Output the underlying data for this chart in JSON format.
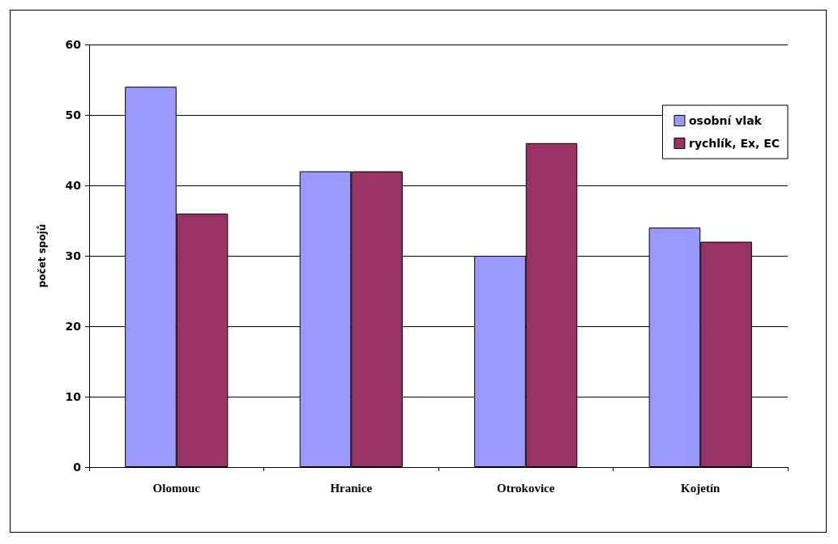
{
  "chart_data": {
    "type": "bar",
    "ylabel": "počet spojů",
    "categories": [
      "Olomouc",
      "Hranice",
      "Otrokovice",
      "Kojetín"
    ],
    "series": [
      {
        "name": "osobní vlak",
        "color": "#9999ff",
        "values": [
          54,
          42,
          30,
          34
        ]
      },
      {
        "name": "rychlík, Ex, EC",
        "color": "#993366",
        "values": [
          36,
          42,
          46,
          32
        ]
      }
    ],
    "ylim": [
      0,
      60
    ],
    "yticks": [
      0,
      10,
      20,
      30,
      40,
      50,
      60
    ],
    "grid": "y",
    "legend": "top right"
  }
}
